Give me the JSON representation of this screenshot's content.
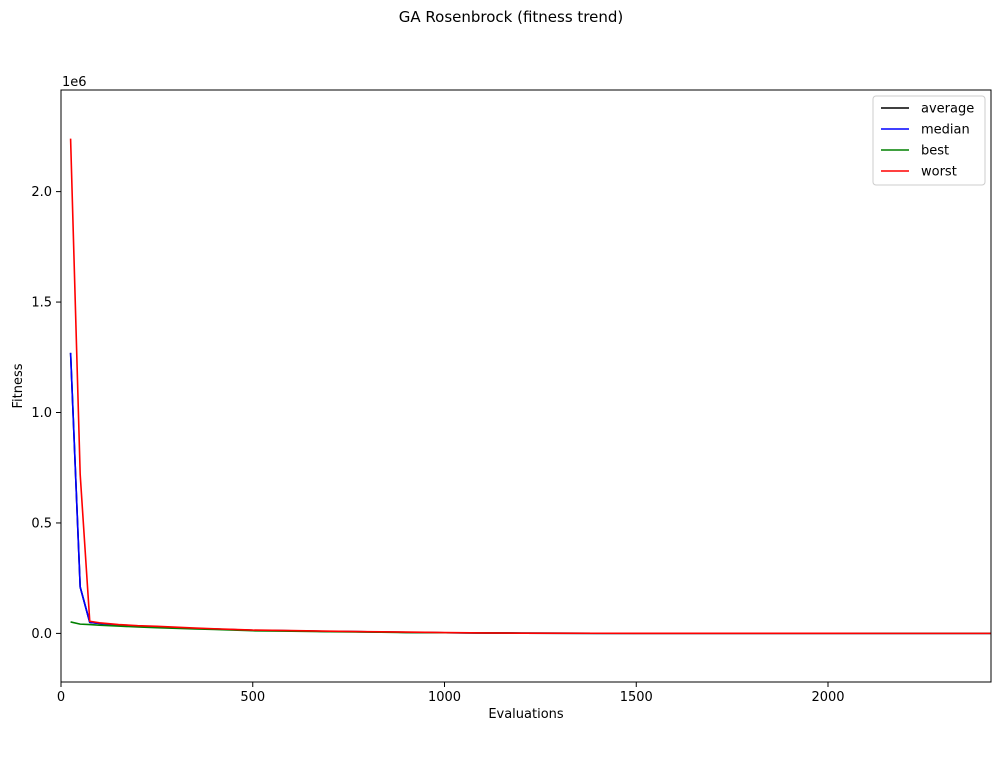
{
  "chart_data": {
    "type": "line",
    "title": "GA Rosenbrock (fitness trend)",
    "xlabel": "Evaluations",
    "ylabel": "Fitness",
    "y_offset_label": "1e6",
    "xlim": [
      0,
      2425
    ],
    "ylim": [
      -0.22,
      2.46
    ],
    "y_unit_multiplier": 1000000,
    "xticks": [
      0,
      500,
      1000,
      1500,
      2000
    ],
    "yticks": [
      0.0,
      0.5,
      1.0,
      1.5,
      2.0
    ],
    "ytick_labels": [
      "0.0",
      "0.5",
      "1.0",
      "1.5",
      "2.0"
    ],
    "grid": false,
    "legend_position": "top-right",
    "series": [
      {
        "name": "average",
        "color": "#000000",
        "x": [
          25,
          50,
          75,
          100,
          150,
          200,
          250,
          300,
          350,
          400,
          450,
          500,
          600,
          700,
          800,
          900,
          1000,
          1100,
          1200,
          1400,
          1600,
          1800,
          2000,
          2200,
          2425
        ],
        "y": [
          1.27,
          0.21,
          0.05,
          0.045,
          0.038,
          0.033,
          0.03,
          0.026,
          0.022,
          0.02,
          0.017,
          0.014,
          0.012,
          0.009,
          0.007,
          0.005,
          0.003,
          0.002,
          0.001,
          0.0006,
          0.0004,
          0.0003,
          0.0002,
          0.0001,
          0.0001
        ]
      },
      {
        "name": "median",
        "color": "#0000ff",
        "x": [
          25,
          50,
          75,
          100,
          150,
          200,
          250,
          300,
          350,
          400,
          450,
          500,
          600,
          700,
          800,
          900,
          1000,
          1100,
          1200,
          1400,
          1600,
          1800,
          2000,
          2200,
          2425
        ],
        "y": [
          1.27,
          0.21,
          0.05,
          0.045,
          0.038,
          0.033,
          0.03,
          0.026,
          0.022,
          0.02,
          0.017,
          0.014,
          0.012,
          0.009,
          0.007,
          0.005,
          0.003,
          0.002,
          0.001,
          0.0006,
          0.0004,
          0.0003,
          0.0002,
          0.0001,
          0.0001
        ]
      },
      {
        "name": "best",
        "color": "#008000",
        "x": [
          25,
          50,
          75,
          100,
          150,
          200,
          250,
          300,
          350,
          400,
          450,
          500,
          600,
          700,
          800,
          900,
          1000,
          1100,
          1200,
          1400,
          1600,
          1800,
          2000,
          2200,
          2425
        ],
        "y": [
          0.052,
          0.042,
          0.04,
          0.037,
          0.033,
          0.029,
          0.026,
          0.023,
          0.02,
          0.018,
          0.015,
          0.012,
          0.01,
          0.008,
          0.006,
          0.004,
          0.003,
          0.002,
          0.001,
          0.0005,
          0.0003,
          0.0002,
          0.0001,
          0.0001,
          0.0001
        ]
      },
      {
        "name": "worst",
        "color": "#ff0000",
        "x": [
          25,
          50,
          75,
          100,
          150,
          200,
          250,
          300,
          350,
          400,
          450,
          500,
          600,
          700,
          800,
          900,
          1000,
          1100,
          1200,
          1400,
          1600,
          1800,
          2000,
          2200,
          2425
        ],
        "y": [
          2.24,
          0.72,
          0.055,
          0.048,
          0.04,
          0.035,
          0.032,
          0.028,
          0.024,
          0.021,
          0.018,
          0.015,
          0.013,
          0.01,
          0.008,
          0.006,
          0.004,
          0.002,
          0.0012,
          0.0007,
          0.0005,
          0.0003,
          0.0002,
          0.0001,
          0.0001
        ]
      }
    ]
  }
}
